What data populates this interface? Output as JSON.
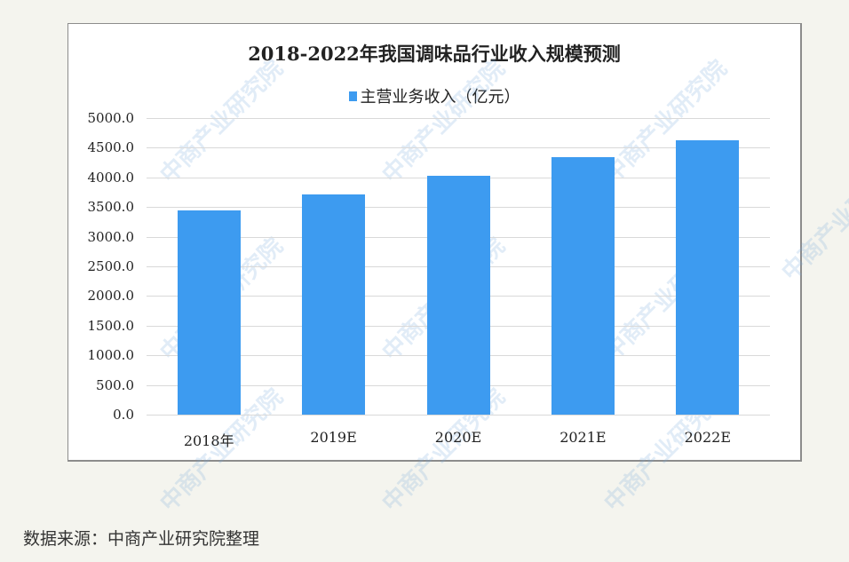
{
  "chart_data": {
    "type": "bar",
    "title": "2018-2022年我国调味品行业收入规模预测",
    "categories": [
      "2018年",
      "2019E",
      "2020E",
      "2021E",
      "2022E"
    ],
    "series": [
      {
        "name": "主营业务收入（亿元）",
        "values": [
          3450,
          3720,
          4020,
          4340,
          4630
        ],
        "color": "#3d9bf0"
      }
    ],
    "xlabel": "",
    "ylabel": "",
    "ylim": [
      0,
      5000
    ],
    "yticks": [
      "0.0",
      "500.0",
      "1000.0",
      "1500.0",
      "2000.0",
      "2500.0",
      "3000.0",
      "3500.0",
      "4000.0",
      "4500.0",
      "5000.0"
    ],
    "grid": true,
    "legend_position": "top"
  },
  "watermark": "中商产业研究院",
  "source_note": "数据来源：中商产业研究院整理"
}
